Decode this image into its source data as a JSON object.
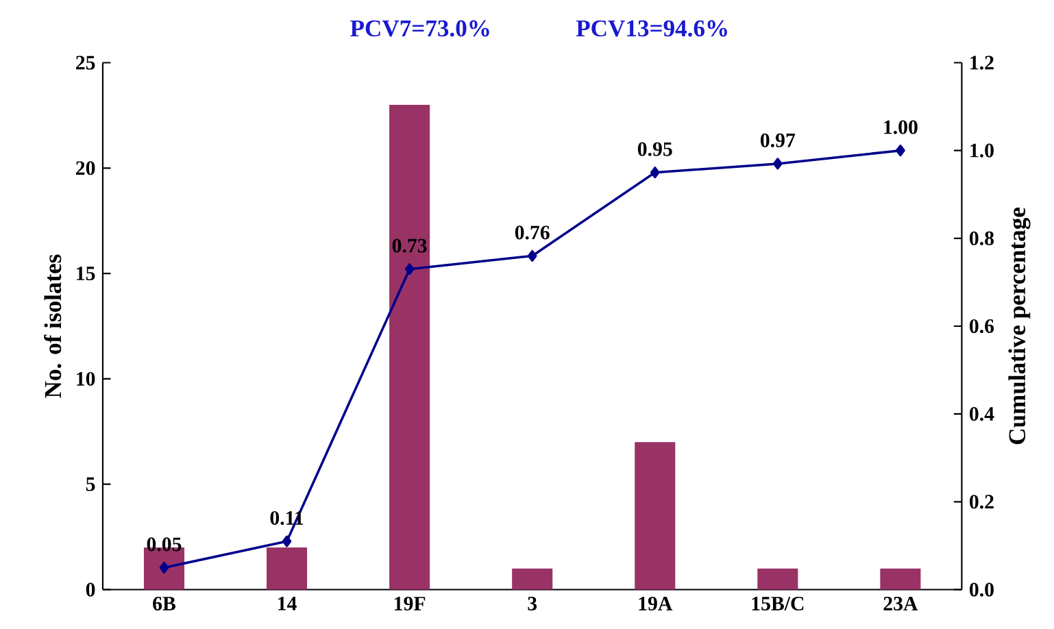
{
  "chart_data": {
    "type": "bar",
    "categories": [
      "6B",
      "14",
      "19F",
      "3",
      "19A",
      "15B/C",
      "23A"
    ],
    "ylabel": "No. of isolates",
    "y2label": "Cumulative percentage",
    "ylim": [
      0,
      25
    ],
    "yticks": [
      0,
      5,
      10,
      15,
      20,
      25
    ],
    "y2lim": [
      0,
      1.2
    ],
    "y2ticks": [
      {
        "value": 0,
        "label": "0.0"
      },
      0.2,
      0.4,
      0.6,
      0.8,
      {
        "value": 1,
        "label": "1.0"
      },
      1.2
    ],
    "marker": "diamond",
    "annotations": [
      "PCV7=73.0%",
      "PCV13=94.6%"
    ],
    "series": [
      {
        "color": "#993366",
        "values": [
          2,
          2,
          23,
          1,
          7,
          1,
          1
        ]
      },
      {
        "type": "line",
        "axis": "y2",
        "color": "#00008B",
        "values": [
          0.05,
          0.11,
          0.73,
          0.76,
          0.95,
          0.97,
          1.0
        ],
        "value_labels": [
          "0.05",
          "0.11",
          "0.73",
          "0.76",
          "0.95",
          "0.97",
          "1.00"
        ]
      }
    ]
  }
}
